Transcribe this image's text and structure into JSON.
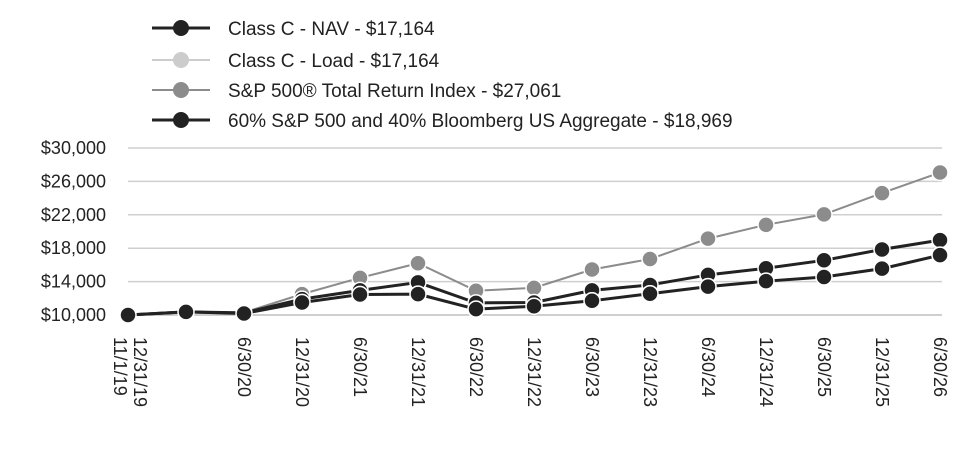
{
  "chart_data": {
    "type": "line",
    "x": [
      "11/1/19",
      "12/31/19",
      "6/30/20",
      "12/31/20",
      "6/30/21",
      "12/31/21",
      "6/30/22",
      "12/31/22",
      "6/30/23",
      "12/31/23",
      "6/30/24",
      "12/31/24",
      "6/30/25",
      "12/31/25",
      "6/30/26"
    ],
    "y_ticks": [
      "$10,000",
      "$14,000",
      "$18,000",
      "$22,000",
      "$26,000",
      "$30,000"
    ],
    "y_tick_values": [
      10000,
      14000,
      18000,
      22000,
      26000,
      30000
    ],
    "ylim": [
      10000,
      30000
    ],
    "grid": true,
    "legend_position": "top-left",
    "series": [
      {
        "name": "Class C - NAV - $17,164",
        "color": "#222222",
        "values": [
          10000,
          10380,
          10180,
          11500,
          12450,
          12500,
          10700,
          11050,
          11700,
          12550,
          13400,
          14050,
          14550,
          15550,
          17164
        ]
      },
      {
        "name": "Class C - Load - $17,164",
        "color": "#cccccc",
        "values": [
          10000,
          10380,
          10180,
          11500,
          12450,
          12500,
          10700,
          11050,
          11700,
          12550,
          13400,
          14050,
          14550,
          15550,
          17164
        ]
      },
      {
        "name": "S&P 500® Total Return Index - $27,061",
        "color": "#8c8c8c",
        "values": [
          10000,
          10380,
          10300,
          12500,
          14450,
          16200,
          12900,
          13250,
          15450,
          16700,
          19150,
          20800,
          22050,
          24600,
          27061
        ]
      },
      {
        "name": "60% S&P 500 and 40% Bloomberg US Aggregate - $18,969",
        "color": "#222222",
        "values": [
          10000,
          10380,
          10250,
          11900,
          12950,
          13900,
          11450,
          11500,
          12950,
          13600,
          14800,
          15600,
          16550,
          17850,
          18969
        ]
      }
    ]
  }
}
